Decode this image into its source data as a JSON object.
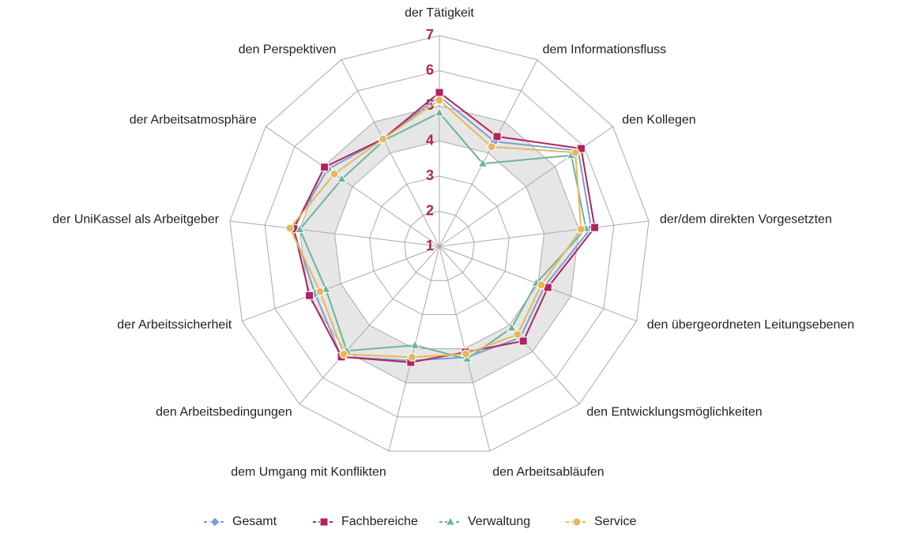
{
  "chart_data": {
    "type": "radar",
    "categories": [
      "der Tätigkeit",
      "dem Informationsfluss",
      "den Kollegen",
      "der/dem direkten Vorgesetzten",
      "den übergeordneten Leitungsebenen",
      "den Entwicklungsmöglichkeiten",
      "den Arbeitsabläufen",
      "dem Umgang mit Konflikten",
      "den Arbeitsbedingungen",
      "der Arbeitssicherheit",
      "der UniKassel als Arbeitgeber",
      "der Arbeitsatmosphäre",
      "den Perspektiven"
    ],
    "series": [
      {
        "name": "Gesamt",
        "color": "#7b9ed0",
        "marker": "diamond",
        "values": [
          5.27,
          4.37,
          5.8,
          5.35,
          4.2,
          4.47,
          4.25,
          4.35,
          5.2,
          4.78,
          5.19,
          4.86,
          4.45
        ]
      },
      {
        "name": "Fachbereiche",
        "color": "#b0245f",
        "marker": "square",
        "values": [
          5.38,
          4.53,
          5.9,
          5.45,
          4.3,
          4.6,
          4.1,
          4.4,
          5.2,
          4.95,
          5.17,
          4.97,
          4.45
        ]
      },
      {
        "name": "Verwaltung",
        "color": "#6fb39a",
        "marker": "triangle",
        "values": [
          4.8,
          3.66,
          5.56,
          5.2,
          3.95,
          4.1,
          4.3,
          3.9,
          4.97,
          4.45,
          5.0,
          4.37,
          4.4
        ]
      },
      {
        "name": "Service",
        "color": "#e6b85c",
        "marker": "circle",
        "values": [
          5.16,
          4.2,
          5.7,
          5.06,
          4.1,
          4.35,
          4.15,
          4.25,
          5.1,
          4.63,
          5.28,
          4.63,
          4.45
        ]
      }
    ],
    "ylim": [
      1,
      7
    ],
    "yticks": [
      1,
      2,
      3,
      4,
      5,
      6,
      7
    ],
    "tick_color": "#b0245f",
    "shaded_band": [
      4,
      5
    ],
    "grid": true,
    "legend": "bottom"
  }
}
